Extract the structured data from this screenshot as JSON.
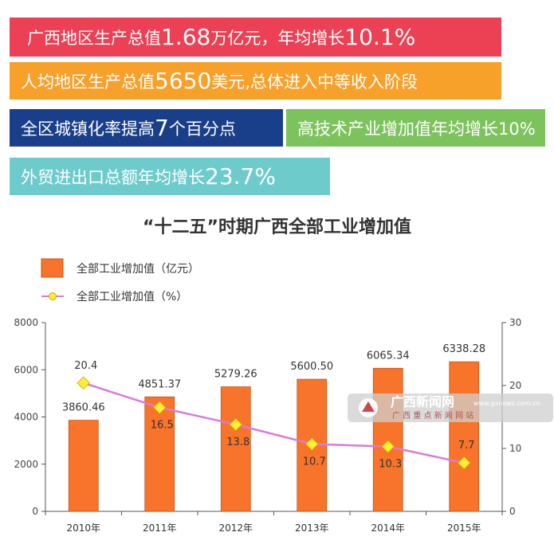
{
  "banners": [
    {
      "pre": "广西地区生产总值 ",
      "big": "1.68",
      "post": " 万亿元，年均增长 ",
      "big2": "10.1",
      "post2": "%"
    },
    {
      "pre": "人均地区生产总值 ",
      "big": "5650",
      "post": " 美元,总体进入中等收入阶段",
      "big2": "",
      "post2": ""
    },
    {
      "pre": "全区城镇化率提高 ",
      "big": "7",
      "post": " 个百分点",
      "big2": "",
      "post2": ""
    },
    {
      "pre": "高技术产业增加值年均增长10%",
      "big": "",
      "post": "",
      "big2": "",
      "post2": ""
    },
    {
      "pre": "外贸进出口总额年均增长 ",
      "big": "23.7",
      "post": "%",
      "big2": "",
      "post2": ""
    }
  ],
  "colors": {
    "bar": "#f7742a",
    "bar_stroke": "#c95418",
    "line": "#d97bd6",
    "marker": "#ffee33",
    "marker_stroke": "#c9a500"
  },
  "watermark": {
    "main": "广西新闻网",
    "sub": "广 西 重 点 新 闻 网 站",
    "url": "www.gxnews.com.cn"
  },
  "chart_data": {
    "type": "bar",
    "title": "“十二五”时期广西全部工业增加值",
    "categories": [
      "2010年",
      "2011年",
      "2012年",
      "2013年",
      "2014年",
      "2015年"
    ],
    "series": [
      {
        "name": "全部工业增加值（亿元）",
        "type": "bar",
        "axis": "left",
        "values": [
          3860.46,
          4851.37,
          5279.26,
          5600.5,
          6065.34,
          6338.28
        ],
        "labels": [
          "3860.46",
          "4851.37",
          "5279.26",
          "5600.50",
          "6065.34",
          "6338.28"
        ]
      },
      {
        "name": "全部工业增加值（%）",
        "type": "line",
        "axis": "right",
        "values": [
          20.4,
          16.5,
          13.8,
          10.7,
          10.3,
          7.7
        ],
        "labels": [
          "20.4",
          "16.5",
          "13.8",
          "10.7",
          "10.3",
          "7.7"
        ]
      }
    ],
    "y_left": {
      "min": 0,
      "max": 8000,
      "ticks": [
        "0",
        "2000",
        "4000",
        "6000",
        "8000"
      ]
    },
    "y_right": {
      "min": 0,
      "max": 30,
      "ticks": [
        "0",
        "10",
        "20",
        "30"
      ]
    },
    "legend_position": "top-left",
    "grid": false
  }
}
